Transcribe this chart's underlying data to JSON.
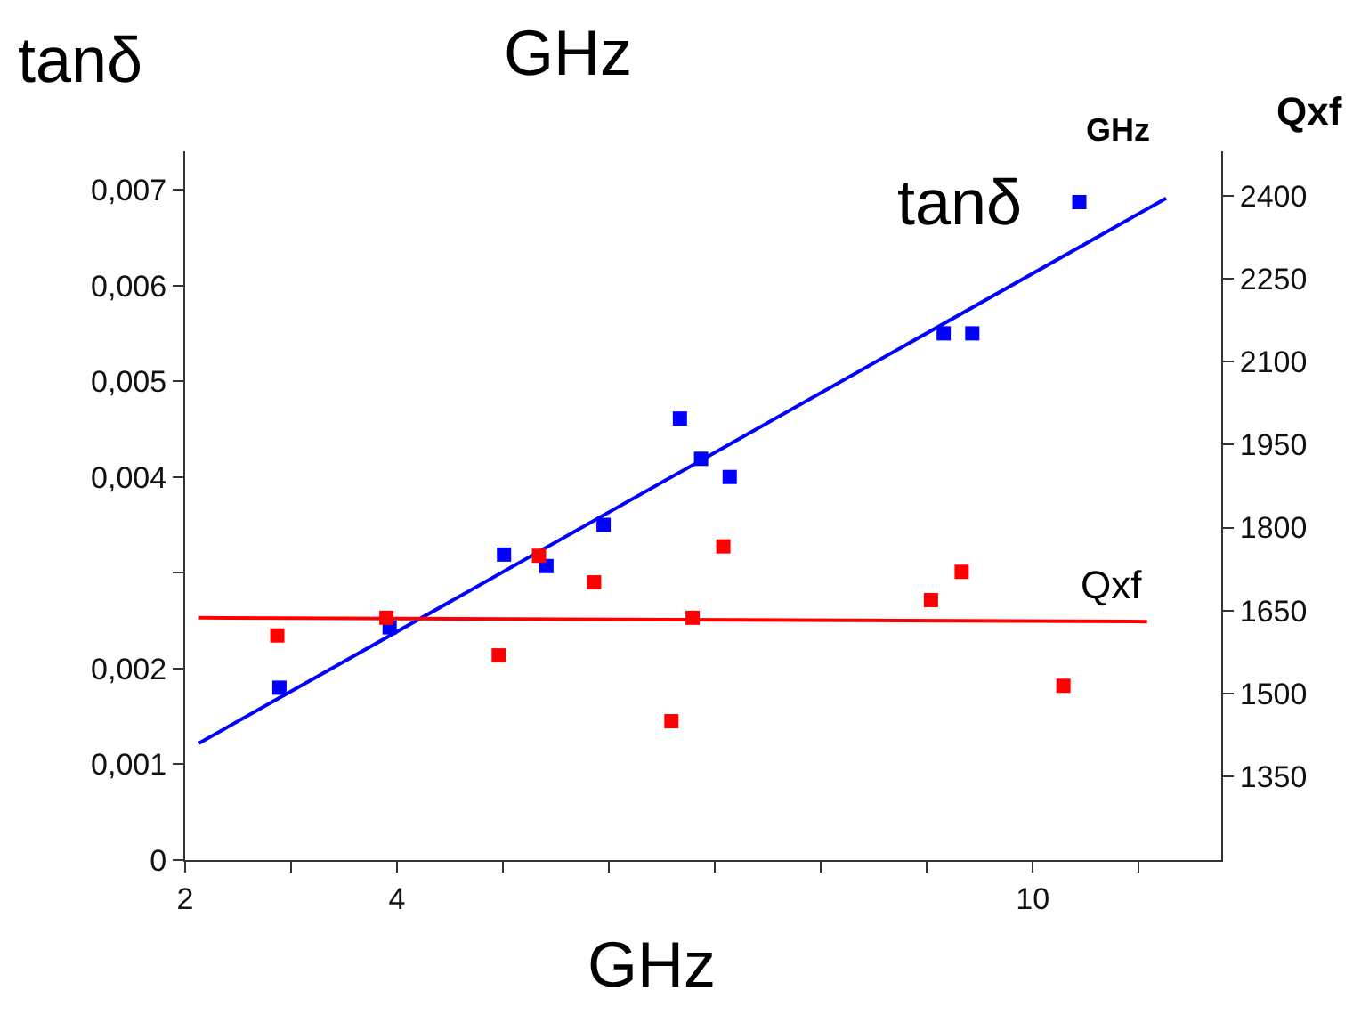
{
  "chart_data": {
    "type": "scatter",
    "title": "GHz",
    "xlabel": "GHz",
    "ylabel": "tanδ",
    "y2label": "Qxf",
    "annotations": [
      "GHz"
    ],
    "xlim": [
      2,
      11.78
    ],
    "xticks": [
      2,
      {
        "value": 3,
        "label": null
      },
      4,
      {
        "value": 5,
        "label": null
      },
      {
        "value": 6,
        "label": null
      },
      {
        "value": 7,
        "label": null
      },
      {
        "value": 8,
        "label": null
      },
      {
        "value": 9,
        "label": null
      },
      10,
      {
        "value": 11,
        "label": null
      }
    ],
    "ylim": [
      0,
      0.0074
    ],
    "yticks": [
      {
        "value": 0,
        "label": "0"
      },
      {
        "value": 0.001,
        "label": "0,001"
      },
      {
        "value": 0.002,
        "label": "0,002"
      },
      {
        "value": 0.003,
        "label": null
      },
      {
        "value": 0.004,
        "label": "0,004"
      },
      {
        "value": 0.005,
        "label": "0,005"
      },
      {
        "value": 0.006,
        "label": "0,006"
      },
      {
        "value": 0.007,
        "label": "0,007"
      }
    ],
    "y2lim": [
      1199,
      2480
    ],
    "y2ticks": [
      1350,
      1500,
      1650,
      1800,
      1950,
      2100,
      2250,
      2400
    ],
    "legend": false,
    "marker": "square",
    "series": [
      {
        "name": "tanδ",
        "type": "scatter",
        "color": "#0000ff",
        "x": [
          2.89,
          3.93,
          5.01,
          5.41,
          5.95,
          6.67,
          6.87,
          7.14,
          9.16,
          9.43,
          10.44
        ],
        "values": [
          0.0018,
          0.00243,
          0.00319,
          0.00307,
          0.0035,
          0.00461,
          0.00419,
          0.004,
          0.0055,
          0.0055,
          0.00687
        ]
      },
      {
        "type": "line",
        "marker": "none",
        "color": "#0000ff",
        "x": [
          2.13,
          11.26
        ],
        "values": [
          0.00122,
          0.00691
        ]
      },
      {
        "type": "scatter",
        "axis": "y2",
        "color": "#ff0000",
        "x": [
          2.87,
          3.9,
          4.96,
          5.34,
          5.86,
          6.59,
          6.79,
          7.08,
          9.04,
          9.33,
          10.29
        ],
        "values": [
          1605,
          1637,
          1569,
          1749,
          1701,
          1450,
          1637,
          1766,
          1669,
          1720,
          1514
        ]
      },
      {
        "name": "Qxf",
        "type": "line",
        "axis": "y2",
        "marker": "none",
        "color": "#ff0000",
        "x": [
          2.13,
          11.08
        ],
        "values": [
          1637,
          1630
        ]
      }
    ]
  }
}
